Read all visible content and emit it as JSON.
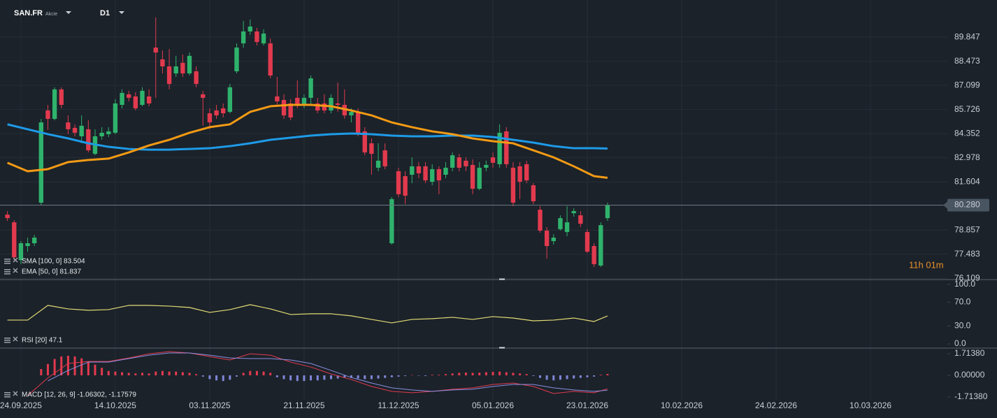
{
  "header": {
    "symbol": "SAN.FR",
    "kind": "Akcie",
    "timeframe": "D1"
  },
  "countdown": "11h 01m",
  "chart_data": [
    {
      "type": "candlestick",
      "xlim": [
        -1.1,
        139.4
      ],
      "xticks": [
        {
          "value": 2,
          "label": "24.09.2025"
        },
        {
          "value": 16,
          "label": "14.10.2025"
        },
        {
          "value": 30,
          "label": "03.11.2025"
        },
        {
          "value": 44,
          "label": "21.11.2025"
        },
        {
          "value": 58,
          "label": "11.12.2025"
        },
        {
          "value": 72,
          "label": "05.01.2026"
        },
        {
          "value": 86,
          "label": "23.01.2026"
        },
        {
          "value": 100,
          "label": "10.02.2026"
        },
        {
          "value": 114,
          "label": "24.02.2026"
        },
        {
          "value": 128,
          "label": "10.03.2026"
        }
      ],
      "ylim": [
        76.04,
        91.96
      ],
      "yticks": [
        89.847,
        88.473,
        87.099,
        85.726,
        84.352,
        82.978,
        81.604,
        78.857,
        77.483,
        76.109
      ],
      "grid": true,
      "up_color": "#2fb36c",
      "down_color": "#e23a4e",
      "x": [
        0,
        1,
        2,
        3,
        4,
        5,
        6,
        7,
        8,
        9,
        10,
        11,
        12,
        13,
        14,
        15,
        16,
        17,
        18,
        19,
        20,
        21,
        22,
        23,
        24,
        25,
        26,
        27,
        28,
        29,
        30,
        31,
        32,
        33,
        34,
        35,
        36,
        37,
        38,
        39,
        40,
        41,
        42,
        43,
        44,
        45,
        46,
        47,
        48,
        49,
        50,
        51,
        52,
        53,
        54,
        55,
        56,
        57,
        58,
        59,
        60,
        61,
        62,
        63,
        64,
        65,
        66,
        67,
        68,
        69,
        70,
        71,
        72,
        73,
        74,
        75,
        76,
        77,
        78,
        79,
        80,
        81,
        82,
        83,
        84,
        85,
        86,
        87,
        88,
        89
      ],
      "open": [
        79.74,
        79.3,
        77.15,
        77.95,
        78.11,
        80.42,
        85.67,
        85.19,
        86.87,
        84.99,
        84.68,
        84.2,
        84.6,
        83.2,
        84.2,
        84.32,
        84.4,
        85.99,
        86.59,
        86.47,
        85.99,
        86.47,
        89.25,
        88.58,
        88.18,
        87.78,
        88.38,
        87.78,
        87.9,
        86.59,
        85.51,
        85.67,
        85.79,
        85.59,
        87.9,
        89.49,
        90.17,
        90.17,
        89.49,
        89.49,
        86.47,
        86.27,
        86.07,
        86.39,
        85.99,
        86.39,
        86.07,
        86.07,
        85.67,
        86.07,
        85.99,
        85.39,
        85.59,
        84.48,
        83.8,
        82.41,
        83.4,
        78.11,
        82.21,
        81.93,
        82.01,
        82.49,
        82.49,
        81.61,
        82.33,
        82.01,
        82.41,
        83.0,
        82.81,
        82.57,
        81.21,
        82.41,
        83.0,
        82.61,
        84.48,
        82.41,
        82.49,
        82.61,
        81.41,
        80.02,
        78.83,
        78.23,
        78.91,
        78.75,
        79.82,
        79.7,
        78.75,
        77.95,
        76.84,
        79.54
      ],
      "high": [
        79.94,
        79.42,
        78.23,
        78.43,
        78.59,
        85.19,
        85.99,
        86.99,
        86.99,
        85.39,
        84.88,
        85.39,
        85.11,
        84.6,
        84.72,
        84.72,
        86.31,
        86.87,
        86.79,
        86.71,
        86.99,
        86.87,
        90.97,
        89.09,
        89.17,
        88.78,
        88.86,
        88.97,
        88.18,
        86.79,
        85.79,
        85.99,
        86.07,
        87.18,
        89.49,
        90.77,
        90.85,
        90.37,
        90.29,
        89.77,
        87.58,
        86.59,
        86.31,
        87.38,
        86.59,
        87.66,
        86.39,
        86.59,
        86.59,
        87.26,
        86.87,
        85.79,
        85.79,
        84.72,
        84.08,
        83.8,
        83.8,
        80.74,
        82.41,
        82.21,
        83.0,
        82.73,
        82.73,
        82.61,
        82.49,
        82.73,
        83.28,
        83.2,
        83.0,
        82.89,
        82.73,
        82.81,
        83.28,
        84.88,
        84.72,
        82.73,
        82.73,
        82.81,
        81.53,
        80.22,
        79.03,
        78.63,
        79.7,
        80.22,
        80.1,
        79.94,
        78.91,
        78.11,
        79.3,
        80.42
      ],
      "low": [
        79.38,
        77.15,
        76.92,
        77.63,
        77.95,
        80.26,
        84.56,
        85.11,
        85.79,
        84.32,
        84.2,
        83.8,
        83.28,
        83.12,
        84.0,
        84.16,
        84.32,
        85.79,
        86.19,
        85.67,
        85.91,
        85.91,
        86.39,
        87.78,
        86.87,
        87.58,
        87.58,
        87.66,
        86.99,
        84.8,
        84.6,
        85.19,
        85.27,
        85.51,
        87.78,
        89.25,
        89.97,
        89.37,
        89.37,
        87.5,
        85.99,
        85.19,
        85.11,
        85.79,
        85.79,
        85.99,
        85.51,
        85.51,
        85.51,
        85.59,
        85.19,
        84.99,
        84.2,
        83.12,
        82.01,
        82.21,
        82.33,
        78.03,
        80.74,
        80.34,
        81.53,
        81.81,
        81.53,
        81.41,
        80.9,
        81.81,
        82.21,
        82.21,
        82.21,
        80.9,
        81.13,
        82.21,
        82.41,
        82.41,
        82.41,
        80.22,
        80.62,
        81.53,
        80.34,
        78.71,
        77.23,
        78.03,
        78.83,
        78.51,
        79.62,
        79.03,
        77.55,
        76.76,
        76.76,
        79.38
      ],
      "close": [
        79.54,
        77.31,
        78.11,
        78.11,
        78.43,
        84.99,
        85.19,
        86.87,
        85.99,
        84.6,
        84.4,
        84.8,
        83.4,
        84.2,
        84.4,
        84.48,
        86.07,
        86.67,
        86.39,
        85.79,
        86.79,
        86.07,
        88.97,
        88.18,
        87.18,
        88.18,
        87.78,
        88.78,
        87.18,
        86.39,
        84.99,
        85.39,
        85.51,
        86.99,
        89.25,
        90.17,
        90.45,
        89.57,
        90.05,
        87.66,
        86.19,
        85.39,
        85.27,
        85.99,
        86.39,
        87.5,
        85.67,
        85.67,
        86.39,
        85.99,
        85.39,
        85.59,
        84.4,
        83.28,
        83.2,
        82.81,
        82.49,
        80.62,
        80.9,
        80.82,
        82.49,
        82.09,
        81.69,
        82.33,
        81.69,
        82.41,
        83.12,
        82.41,
        82.49,
        81.21,
        82.41,
        82.57,
        82.69,
        84.4,
        82.61,
        80.42,
        81.61,
        81.69,
        80.5,
        78.83,
        77.95,
        78.43,
        79.54,
        79.3,
        79.94,
        79.22,
        77.63,
        76.92,
        79.14,
        80.28
      ],
      "price_line": {
        "value": 80.28,
        "label": "80.280",
        "color": "#6d7884"
      },
      "overlays": [
        {
          "name": "SMA [100, 0] 83.504",
          "color": "#1e9be8",
          "x": [
            0,
            3,
            6,
            9,
            12,
            15,
            18,
            21,
            24,
            27,
            30,
            33,
            36,
            39,
            42,
            45,
            48,
            51,
            54,
            57,
            60,
            63,
            66,
            69,
            72,
            75,
            78,
            81,
            84,
            87,
            89
          ],
          "values": [
            84.88,
            84.6,
            84.32,
            84.08,
            83.8,
            83.6,
            83.48,
            83.44,
            83.44,
            83.48,
            83.52,
            83.64,
            83.8,
            84.0,
            84.12,
            84.24,
            84.32,
            84.36,
            84.32,
            84.24,
            84.2,
            84.2,
            84.24,
            84.24,
            84.16,
            84.0,
            83.84,
            83.64,
            83.52,
            83.52,
            83.504
          ]
        },
        {
          "name": "EMA [50, 0] 81.837",
          "color": "#f39a14",
          "x": [
            0,
            3,
            6,
            9,
            12,
            15,
            18,
            21,
            24,
            27,
            30,
            33,
            36,
            39,
            42,
            45,
            48,
            51,
            54,
            57,
            60,
            63,
            66,
            69,
            72,
            75,
            78,
            81,
            84,
            87,
            89
          ],
          "values": [
            82.69,
            82.21,
            82.33,
            82.73,
            82.85,
            82.93,
            83.28,
            83.68,
            84.0,
            84.4,
            84.72,
            84.88,
            85.59,
            85.91,
            85.99,
            85.99,
            85.91,
            85.67,
            85.39,
            84.99,
            84.72,
            84.48,
            84.32,
            84.08,
            83.92,
            83.8,
            83.4,
            83.0,
            82.49,
            81.93,
            81.837
          ]
        }
      ]
    },
    {
      "type": "line",
      "label": "RSI [20] 47.1",
      "ylim": [
        -7,
        108
      ],
      "yticks": [
        {
          "value": 100,
          "label": "100.0"
        },
        {
          "value": 70,
          "label": "70.0"
        },
        {
          "value": 30,
          "label": "30.0"
        },
        {
          "value": 0,
          "label": "0.0"
        }
      ],
      "series": [
        {
          "color": "#e3db74",
          "x": [
            0,
            3,
            6,
            9,
            12,
            15,
            18,
            21,
            24,
            27,
            30,
            33,
            36,
            39,
            42,
            45,
            48,
            51,
            54,
            57,
            60,
            63,
            66,
            69,
            72,
            75,
            78,
            81,
            84,
            87,
            89
          ],
          "values": [
            40.0,
            40.0,
            64.7,
            58.8,
            56.5,
            57.6,
            64.7,
            64.7,
            63.5,
            61.2,
            52.9,
            57.6,
            65.9,
            58.8,
            49.4,
            50.6,
            50.6,
            47.1,
            41.2,
            35.3,
            41.2,
            42.4,
            44.7,
            41.2,
            45.9,
            43.5,
            38.8,
            40.0,
            43.5,
            37.6,
            47.1
          ]
        }
      ]
    },
    {
      "type": "macd",
      "label": "MACD [12, 26, 9] -1.06302, -1.17579",
      "ylim": [
        -1.94,
        2.16
      ],
      "yticks": [
        {
          "value": 1.7138,
          "label": "1.71380"
        },
        {
          "value": 0,
          "label": "0.00000"
        },
        {
          "value": -1.7138,
          "label": "-1.71380"
        }
      ],
      "hist_up_color": "#e23a4e",
      "hist_down_color": "#7f86d6",
      "histogram": [
        null,
        null,
        null,
        null,
        null,
        0.5,
        0.9,
        1.3,
        1.5,
        1.55,
        1.5,
        1.35,
        1.1,
        0.85,
        0.6,
        0.35,
        0.3,
        0.25,
        0.2,
        0.15,
        0.2,
        0.15,
        0.3,
        0.35,
        0.3,
        0.3,
        0.25,
        0.2,
        0.1,
        -0.1,
        -0.3,
        -0.4,
        -0.45,
        -0.35,
        -0.1,
        0.2,
        0.35,
        0.35,
        0.3,
        0.2,
        -0.15,
        -0.3,
        -0.4,
        -0.45,
        -0.45,
        -0.4,
        -0.4,
        -0.35,
        -0.3,
        -0.25,
        -0.2,
        -0.2,
        -0.25,
        -0.3,
        -0.3,
        -0.25,
        -0.2,
        -0.15,
        -0.1,
        -0.05,
        0.02,
        -0.03,
        -0.05,
        0.05,
        0.05,
        0.1,
        0.15,
        0.2,
        0.22,
        0.2,
        0.22,
        0.25,
        0.28,
        0.3,
        0.25,
        0.2,
        0.15,
        0.1,
        -0.05,
        -0.2,
        -0.35,
        -0.4,
        -0.35,
        -0.3,
        -0.25,
        -0.2,
        -0.15,
        -0.1,
        0.05,
        0.113
      ],
      "series": [
        {
          "color": "#e23a4e",
          "x": [
            0,
            3,
            6,
            9,
            12,
            15,
            18,
            21,
            24,
            27,
            30,
            33,
            36,
            39,
            42,
            45,
            48,
            51,
            54,
            57,
            60,
            63,
            66,
            69,
            72,
            75,
            78,
            81,
            84,
            87,
            89
          ],
          "values": [
            null,
            -1.6,
            -0.2,
            0.94,
            1.1,
            1.1,
            1.38,
            1.71,
            1.88,
            1.77,
            1.49,
            1.22,
            1.71,
            1.6,
            1.05,
            0.66,
            0.11,
            -0.33,
            -0.88,
            -1.27,
            -1.38,
            -1.27,
            -1.1,
            -0.99,
            -0.72,
            -0.61,
            -0.88,
            -1.44,
            -1.27,
            -1.38,
            -1.063
          ]
        },
        {
          "color": "#8a90e0",
          "x": [
            0,
            3,
            6,
            9,
            12,
            15,
            18,
            21,
            24,
            27,
            30,
            33,
            36,
            39,
            42,
            45,
            48,
            51,
            54,
            57,
            60,
            63,
            66,
            69,
            72,
            75,
            78,
            81,
            84,
            87,
            89
          ],
          "values": [
            null,
            null,
            -0.44,
            0.39,
            1.05,
            1.05,
            1.33,
            1.6,
            1.77,
            1.77,
            1.6,
            1.38,
            1.33,
            1.33,
            1.22,
            0.94,
            0.39,
            -0.17,
            -0.61,
            -0.99,
            -1.16,
            -1.27,
            -1.16,
            -1.1,
            -0.88,
            -0.72,
            -0.72,
            -0.99,
            -1.16,
            -1.27,
            -1.176
          ]
        }
      ]
    }
  ]
}
